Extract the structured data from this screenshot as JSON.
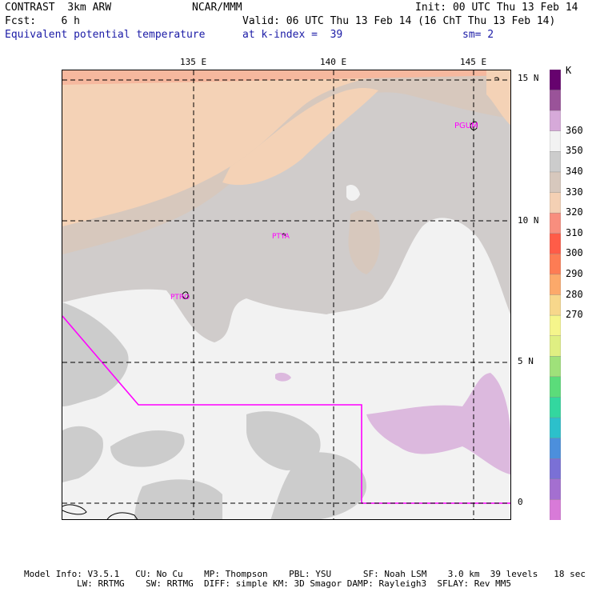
{
  "header": {
    "model": "CONTRAST  3km ARW",
    "org": "NCAR/MMM",
    "init": "Init: 00 UTC Thu 13 Feb 14",
    "fcst": "Fcst:    6 h",
    "valid": "Valid: 06 UTC Thu 13 Feb 14 (16 ChT Thu 13 Feb 14)",
    "field": "Equivalent potential temperature",
    "level": "at k-index =  39",
    "smooth": "sm= 2"
  },
  "map": {
    "lon_labels": [
      "135 E",
      "140 E",
      "145 E"
    ],
    "lat_labels": [
      "15 N",
      "10 N",
      "5 N",
      "0"
    ],
    "stations": [
      "PGUM",
      "PTYA",
      "PTRO"
    ]
  },
  "colorbar": {
    "unit": "K",
    "levels": [
      "360",
      "350",
      "340",
      "330",
      "320",
      "310",
      "300",
      "290",
      "280",
      "270"
    ],
    "colors": [
      "#66026e",
      "#9a5399",
      "#d6a9d9",
      "#f2f2f2",
      "#cccccc",
      "#d7c8bd",
      "#f4d0b4",
      "#f88e7e",
      "#ff5c48",
      "#fd7c54",
      "#fca96a",
      "#f7d78b",
      "#f5f58b",
      "#dfef82",
      "#9fe17a",
      "#5bdc7a",
      "#33d79f",
      "#2cc0cb",
      "#4c8fdc",
      "#7a70d6",
      "#a46fd0",
      "#d87ad8"
    ]
  },
  "footer": {
    "line1": "Model Info: V3.5.1   CU: No Cu    MP: Thompson    PBL: YSU      SF: Noah LSM    3.0 km  39 levels   18 sec",
    "line2": "LW: RRTMG    SW: RRTMG  DIFF: simple KM: 3D Smagor DAMP: Rayleigh3  SFLAY: Rev MM5"
  }
}
